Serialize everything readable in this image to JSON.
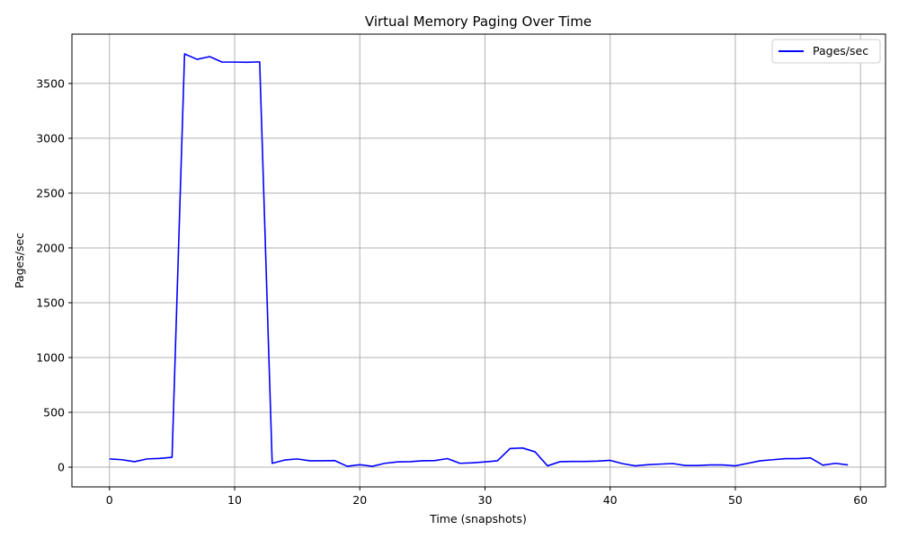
{
  "chart_data": {
    "type": "line",
    "title": "Virtual Memory Paging Over Time",
    "xlabel": "Time (snapshots)",
    "ylabel": "Pages/sec",
    "xlim": [
      -3,
      62
    ],
    "ylim": [
      -180,
      3950
    ],
    "xticks": [
      0,
      10,
      20,
      30,
      40,
      50,
      60
    ],
    "yticks": [
      0,
      500,
      1000,
      1500,
      2000,
      2500,
      3000,
      3500
    ],
    "grid": true,
    "legend_position": "top-right",
    "series": [
      {
        "name": "Pages/sec",
        "color": "#0000ff",
        "x": [
          0,
          1,
          2,
          3,
          4,
          5,
          6,
          7,
          8,
          9,
          10,
          11,
          12,
          13,
          14,
          15,
          16,
          17,
          18,
          19,
          20,
          21,
          22,
          23,
          24,
          25,
          26,
          27,
          28,
          29,
          30,
          31,
          32,
          33,
          34,
          35,
          36,
          37,
          38,
          39,
          40,
          41,
          42,
          43,
          44,
          45,
          46,
          47,
          48,
          49,
          50,
          51,
          52,
          53,
          54,
          55,
          56,
          57,
          58,
          59
        ],
        "y": [
          75,
          68,
          50,
          75,
          80,
          90,
          3770,
          3720,
          3745,
          3695,
          3695,
          3693,
          3697,
          35,
          65,
          75,
          58,
          58,
          60,
          8,
          22,
          8,
          35,
          48,
          50,
          58,
          60,
          78,
          35,
          40,
          48,
          58,
          170,
          175,
          140,
          12,
          50,
          52,
          52,
          55,
          62,
          32,
          12,
          22,
          28,
          33,
          15,
          15,
          20,
          20,
          12,
          35,
          58,
          68,
          78,
          78,
          85,
          18,
          35,
          20
        ]
      }
    ]
  }
}
